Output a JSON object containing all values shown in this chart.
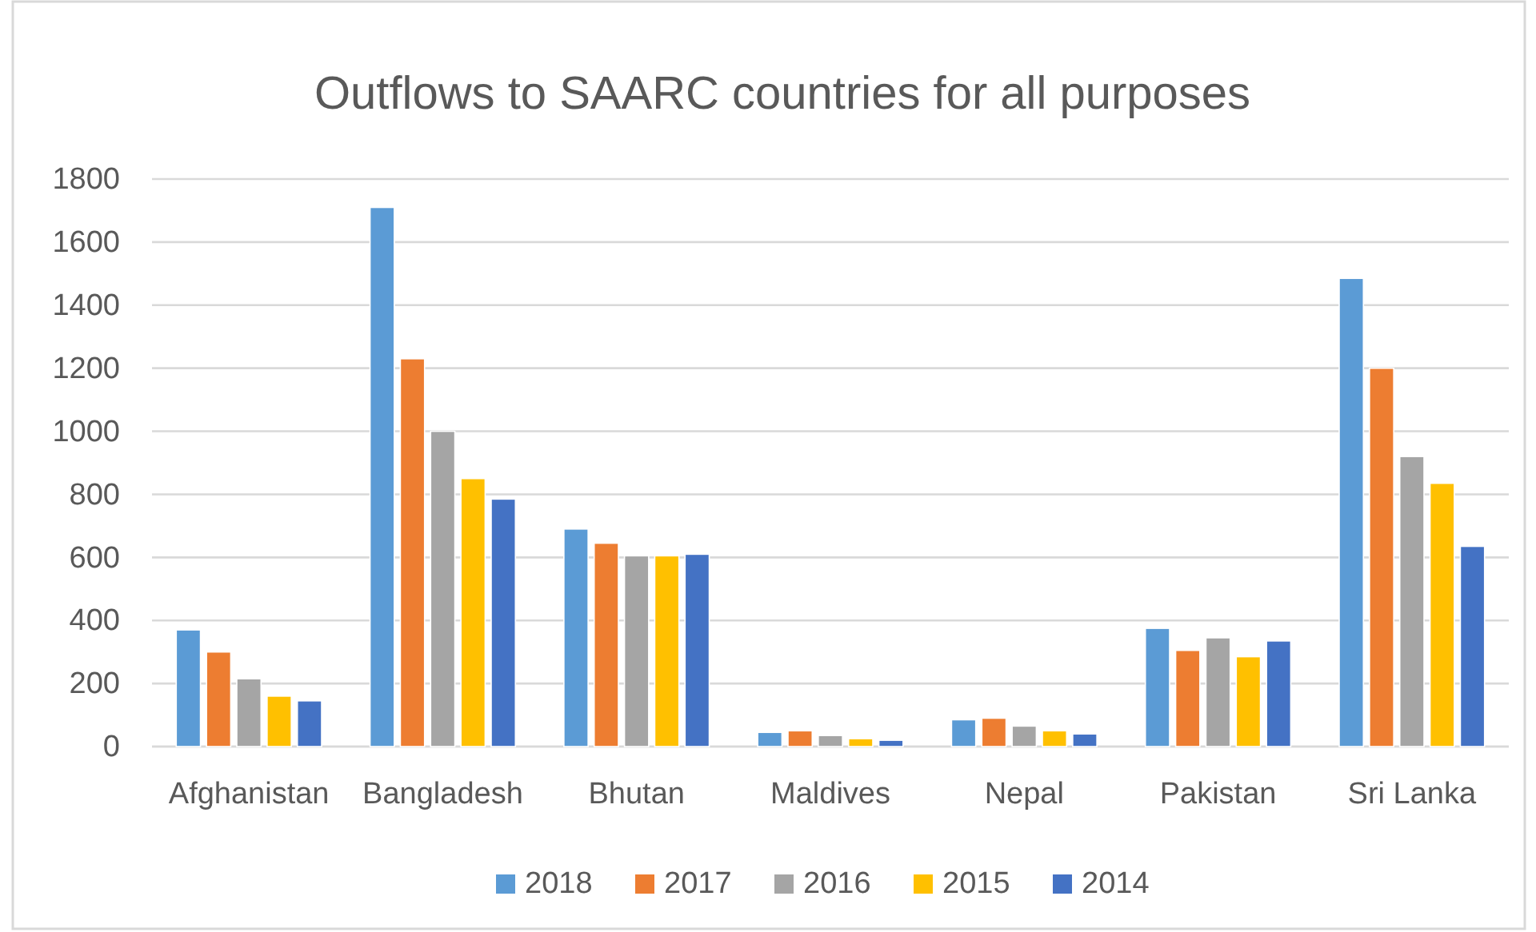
{
  "chart_data": {
    "type": "bar",
    "title": "Outflows to SAARC countries for all purposes",
    "categories": [
      "Afghanistan",
      "Bangladesh",
      "Bhutan",
      "Maldives",
      "Nepal",
      "Pakistan",
      "Sri Lanka"
    ],
    "series": [
      {
        "name": "2018",
        "color": "#5b9bd5",
        "values": [
          370,
          1710,
          690,
          45,
          85,
          375,
          1485
        ]
      },
      {
        "name": "2017",
        "color": "#ed7d31",
        "values": [
          300,
          1230,
          645,
          50,
          90,
          305,
          1200
        ]
      },
      {
        "name": "2016",
        "color": "#a5a5a5",
        "values": [
          215,
          1000,
          605,
          35,
          65,
          345,
          920
        ]
      },
      {
        "name": "2015",
        "color": "#ffc000",
        "values": [
          160,
          850,
          605,
          25,
          50,
          285,
          835
        ]
      },
      {
        "name": "2014",
        "color": "#4472c4",
        "values": [
          145,
          785,
          610,
          20,
          40,
          335,
          635
        ]
      }
    ],
    "ylim": [
      0,
      1800
    ],
    "yticks": [
      0,
      200,
      400,
      600,
      800,
      1000,
      1200,
      1400,
      1600,
      1800
    ],
    "grid": "y",
    "legend": "bottom"
  }
}
